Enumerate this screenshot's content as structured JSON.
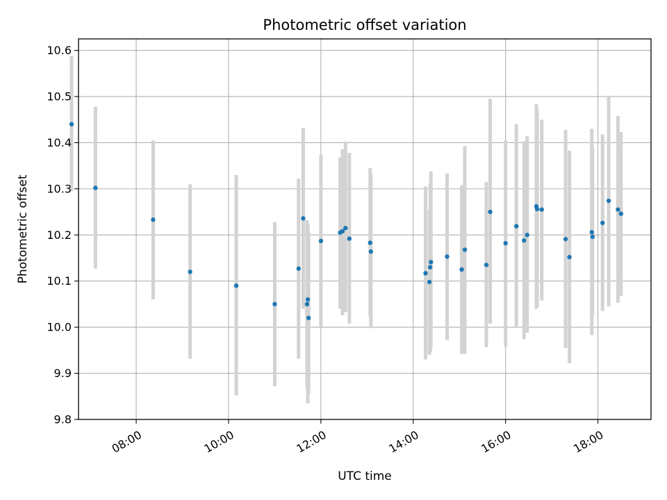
{
  "chart_data": {
    "type": "scatter",
    "title": "Photometric offset variation",
    "xlabel": "UTC time",
    "ylabel": "Photometric offset",
    "xlim": [
      "06:45",
      "19:09"
    ],
    "ylim": [
      9.8,
      10.625
    ],
    "x_ticks": [
      "08:00",
      "10:00",
      "12:00",
      "14:00",
      "16:00",
      "18:00"
    ],
    "y_ticks": [
      9.8,
      9.9,
      10.0,
      10.1,
      10.2,
      10.3,
      10.4,
      10.5,
      10.6
    ],
    "y_tick_labels": [
      "9.8",
      "9.9",
      "10.0",
      "10.1",
      "10.2",
      "10.3",
      "10.4",
      "10.5",
      "10.6"
    ],
    "grid": true,
    "colors": {
      "point": "#1f77b4",
      "errorbar": "#d3d3d3",
      "grid": "#b0b0b0"
    },
    "series": [
      {
        "x": [
          "06:36",
          "07:07",
          "08:22",
          "09:10",
          "10:10",
          "11:00",
          "11:31",
          "11:37",
          "11:42",
          "11:43",
          "11:44",
          "12:00",
          "12:25",
          "12:28",
          "12:32",
          "12:37",
          "13:04",
          "13:05",
          "14:16",
          "14:21",
          "14:22",
          "14:23",
          "14:44",
          "15:03",
          "15:07",
          "15:35",
          "15:40",
          "16:00",
          "16:14",
          "16:24",
          "16:28",
          "16:40",
          "16:41",
          "16:47",
          "17:18",
          "17:23",
          "17:52",
          "17:53",
          "18:06",
          "18:14",
          "18:26",
          "18:30"
        ],
        "y": [
          10.44,
          10.302,
          10.233,
          10.12,
          10.09,
          10.05,
          10.127,
          10.236,
          10.05,
          10.06,
          10.02,
          10.187,
          10.205,
          10.208,
          10.215,
          10.192,
          10.183,
          10.164,
          10.117,
          10.098,
          10.13,
          10.141,
          10.153,
          10.125,
          10.168,
          10.135,
          10.25,
          10.182,
          10.219,
          10.188,
          10.2,
          10.262,
          10.256,
          10.255,
          10.191,
          10.152,
          10.206,
          10.196,
          10.226,
          10.274,
          10.255,
          10.246
        ],
        "yerr_low": [
          10.295,
          10.127,
          10.06,
          9.932,
          9.852,
          9.872,
          9.932,
          10.04,
          9.87,
          9.835,
          9.855,
          10.0,
          10.04,
          10.026,
          10.033,
          10.008,
          10.023,
          9.998,
          9.93,
          9.94,
          9.945,
          9.955,
          9.972,
          9.942,
          9.942,
          9.957,
          10.008,
          9.958,
          10.0,
          9.974,
          9.988,
          10.04,
          10.045,
          10.058,
          9.955,
          9.922,
          9.983,
          10.025,
          10.035,
          10.045,
          10.053,
          10.068
        ],
        "yerr_high": [
          10.588,
          10.478,
          10.405,
          10.31,
          10.33,
          10.228,
          10.322,
          10.432,
          10.232,
          10.225,
          10.205,
          10.373,
          10.368,
          10.386,
          10.402,
          10.378,
          10.345,
          10.332,
          10.305,
          10.255,
          10.312,
          10.338,
          10.333,
          10.308,
          10.393,
          10.315,
          10.495,
          10.405,
          10.44,
          10.403,
          10.414,
          10.484,
          10.47,
          10.45,
          10.428,
          10.383,
          10.43,
          10.39,
          10.418,
          10.502,
          10.458,
          10.423
        ]
      }
    ]
  }
}
